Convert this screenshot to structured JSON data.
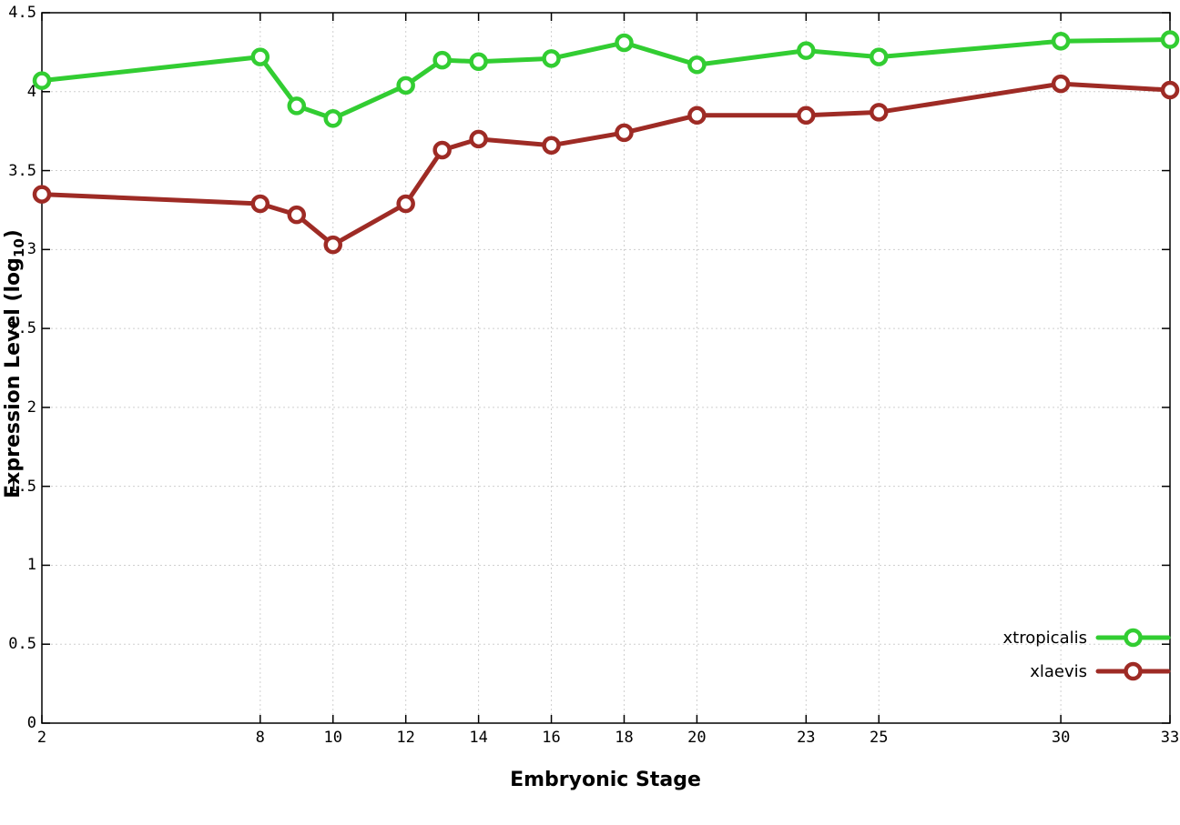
{
  "chart_data": {
    "type": "line",
    "title": "",
    "xlabel": "Embryonic Stage",
    "ylabel": "Expression Level (log10)",
    "ylabel_parts": {
      "main": "Expression Level (log",
      "sub": "10",
      "end": ")"
    },
    "x": [
      2,
      8,
      9,
      10,
      12,
      13,
      14,
      16,
      18,
      20,
      23,
      25,
      30,
      33
    ],
    "xlim": [
      2,
      33
    ],
    "ylim": [
      0,
      4.5
    ],
    "x_ticks": [
      2,
      8,
      10,
      12,
      14,
      16,
      18,
      20,
      23,
      25,
      30,
      33
    ],
    "x_tick_labels": [
      "2",
      "8",
      "10",
      "12",
      "14",
      "16",
      "18",
      "20",
      "23",
      "25",
      "30",
      "33"
    ],
    "y_ticks": [
      0,
      0.5,
      1,
      1.5,
      2,
      2.5,
      3,
      3.5,
      4,
      4.5
    ],
    "y_tick_labels": [
      "0",
      "0.5",
      "1",
      "1.5",
      "2",
      "2.5",
      "3",
      "3.5",
      "4",
      "4.5"
    ],
    "grid": true,
    "legend_position": "bottom-right",
    "series": [
      {
        "name": "xtropicalis",
        "color": "#32cd32",
        "values": [
          4.07,
          4.22,
          3.91,
          3.83,
          4.04,
          4.2,
          4.19,
          4.21,
          4.31,
          4.17,
          4.26,
          4.22,
          4.32,
          4.33
        ]
      },
      {
        "name": "xlaevis",
        "color": "#9e2b25",
        "values": [
          3.35,
          3.29,
          3.22,
          3.03,
          3.29,
          3.63,
          3.7,
          3.66,
          3.74,
          3.85,
          3.85,
          3.87,
          4.05,
          4.01
        ]
      }
    ],
    "style": {
      "grid_color": "#cfcfcf",
      "border_color": "#000000",
      "line_width": 5,
      "marker_radius": 8,
      "marker_stroke": 4.5,
      "marker_fill": "#ffffff"
    }
  }
}
